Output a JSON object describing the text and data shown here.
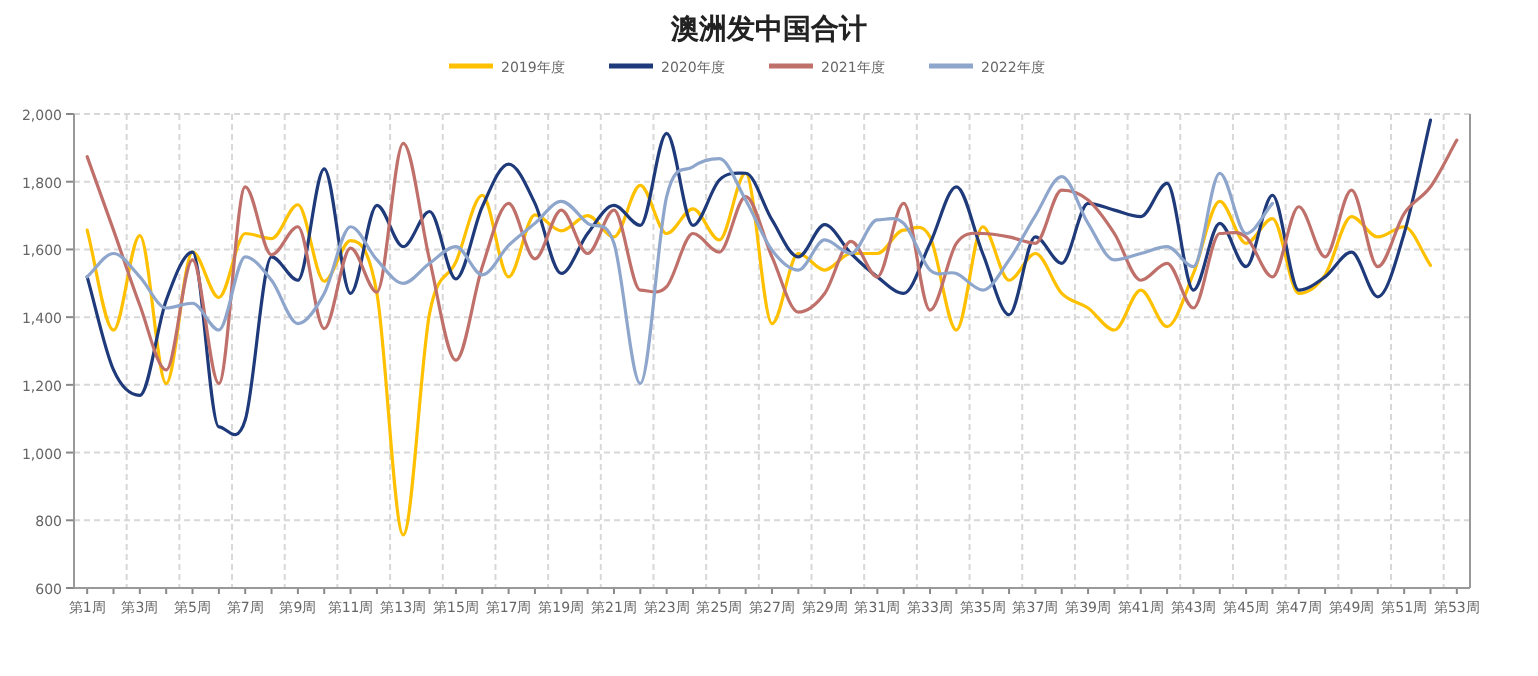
{
  "chart_data": {
    "type": "line",
    "title": "澳洲发中国合计",
    "categories": [
      "第1周",
      null,
      "第3周",
      null,
      "第5周",
      null,
      "第7周",
      null,
      "第9周",
      null,
      "第11周",
      null,
      "第13周",
      null,
      "第15周",
      null,
      "第17周",
      null,
      "第19周",
      null,
      "第21周",
      null,
      "第23周",
      null,
      "第25周",
      null,
      "第27周",
      null,
      "第29周",
      null,
      "第31周",
      null,
      "第33周",
      null,
      "第35周",
      null,
      "第37周",
      null,
      "第39周",
      null,
      "第41周",
      null,
      "第43周",
      null,
      "第45周",
      null,
      "第47周",
      null,
      "第49周",
      null,
      "第51周",
      null,
      "第53周"
    ],
    "series": [
      {
        "name": "2019年度",
        "color": "#ffc000",
        "values": [
          1657,
          1362,
          1641,
          1204,
          1592,
          1458,
          1647,
          1632,
          1732,
          1506,
          1626,
          1470,
          757,
          1411,
          1563,
          1760,
          1519,
          1702,
          1655,
          1700,
          1637,
          1789,
          1647,
          1720,
          1628,
          1825,
          1381,
          1588,
          1539,
          1588,
          1588,
          1657,
          1637,
          1362,
          1667,
          1509,
          1588,
          1470,
          1427,
          1362,
          1480,
          1372,
          1529,
          1742,
          1618,
          1691,
          1470,
          1525,
          1697,
          1637,
          1667,
          1553,
          null
        ]
      },
      {
        "name": "2020年度",
        "color": "#1f3a7a",
        "values": [
          1519,
          1244,
          1169,
          1450,
          1592,
          1076,
          1096,
          1578,
          1509,
          1838,
          1470,
          1730,
          1608,
          1712,
          1513,
          1726,
          1852,
          1736,
          1529,
          1647,
          1730,
          1671,
          1943,
          1671,
          1805,
          1825,
          1687,
          1578,
          1673,
          1588,
          1519,
          1470,
          1618,
          1785,
          1588,
          1407,
          1637,
          1559,
          1736,
          1716,
          1697,
          1795,
          1480,
          1677,
          1549,
          1760,
          1480,
          1519,
          1592,
          1460,
          1647,
          1982,
          null
        ]
      },
      {
        "name": "2021年度",
        "color": "#c0706a",
        "values": [
          1874,
          1657,
          1435,
          1244,
          1569,
          1204,
          1785,
          1584,
          1667,
          1366,
          1604,
          1474,
          1913,
          1569,
          1273,
          1549,
          1736,
          1572,
          1716,
          1588,
          1716,
          1480,
          1490,
          1647,
          1592,
          1756,
          1578,
          1415,
          1470,
          1624,
          1519,
          1736,
          1421,
          1618,
          1647,
          1637,
          1618,
          1775,
          1746,
          1647,
          1509,
          1559,
          1427,
          1647,
          1637,
          1519,
          1726,
          1578,
          1775,
          1549,
          1706,
          1785,
          1923
        ]
      },
      {
        "name": "2022年度",
        "color": "#8ea5cc",
        "values": [
          1519,
          1588,
          1519,
          1427,
          1441,
          1362,
          1578,
          1509,
          1381,
          1470,
          1667,
          1569,
          1500,
          1559,
          1608,
          1525,
          1612,
          1677,
          1742,
          1677,
          1618,
          1204,
          1756,
          1844,
          1868,
          1746,
          1598,
          1539,
          1628,
          1588,
          1687,
          1677,
          1539,
          1529,
          1480,
          1569,
          1700,
          1815,
          1677,
          1569,
          1588,
          1608,
          1549,
          1825,
          1647,
          1736,
          null,
          null,
          null,
          null,
          null,
          null,
          null
        ]
      }
    ],
    "ylim": [
      600,
      2000
    ],
    "yticks": [
      600,
      800,
      {
        "value": 1000,
        "label": "1,000"
      },
      {
        "value": 1200,
        "label": "1,200"
      },
      {
        "value": 1400,
        "label": "1,400"
      },
      {
        "value": 1600,
        "label": "1,600"
      },
      {
        "value": 1800,
        "label": "1,800"
      },
      {
        "value": 2000,
        "label": "2,000"
      }
    ],
    "grid": true,
    "legend": "top",
    "marker": "none",
    "line_style": "solid"
  }
}
